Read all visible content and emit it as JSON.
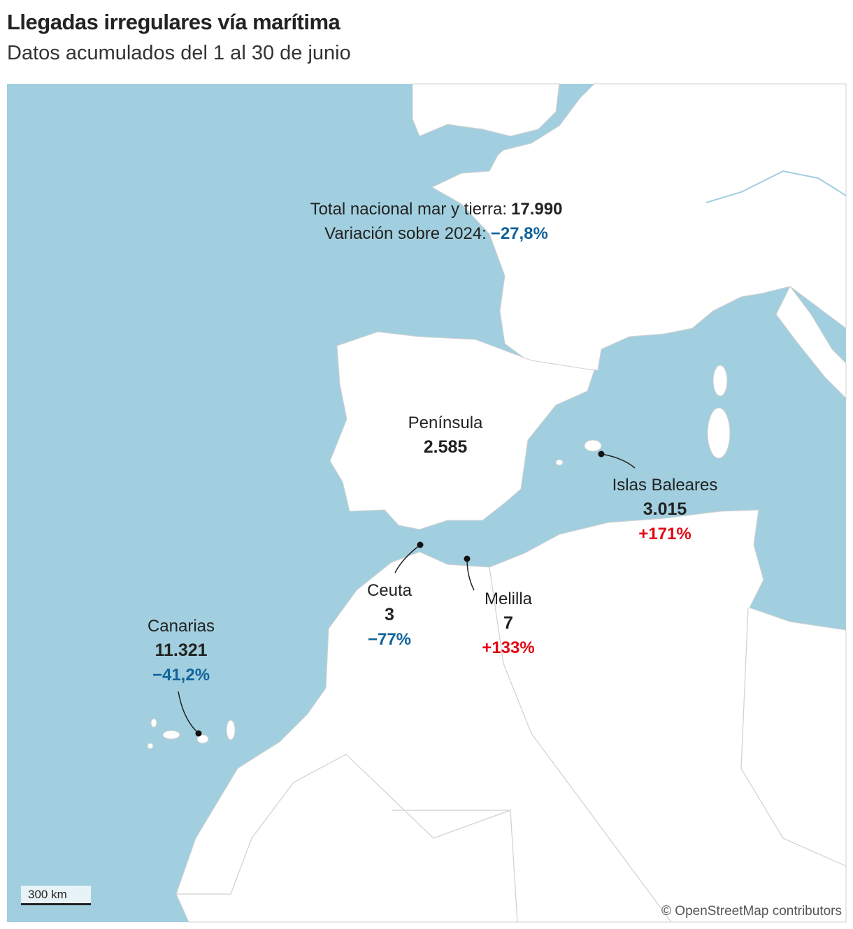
{
  "header": {
    "title": "Llegadas irregulares vía marítima",
    "subtitle": "Datos acumulados del 1 al 30 de junio"
  },
  "summary": {
    "total_label": "Total nacional mar y tierra:",
    "total_value": "17.990",
    "variation_label": "Variación sobre 2024:",
    "variation_value": "−27,8%"
  },
  "regions": [
    {
      "name": "Península",
      "value": "2.585"
    },
    {
      "name": "Islas Baleares",
      "value": "3.015",
      "change": "+171%"
    },
    {
      "name": "Ceuta",
      "value": "3",
      "change": "−77%"
    },
    {
      "name": "Melilla",
      "value": "7",
      "change": "+133%"
    },
    {
      "name": "Canarias",
      "value": "11.321",
      "change": "−41,2%"
    }
  ],
  "scale": "300 km",
  "attribution": "© OpenStreetMap contributors"
}
